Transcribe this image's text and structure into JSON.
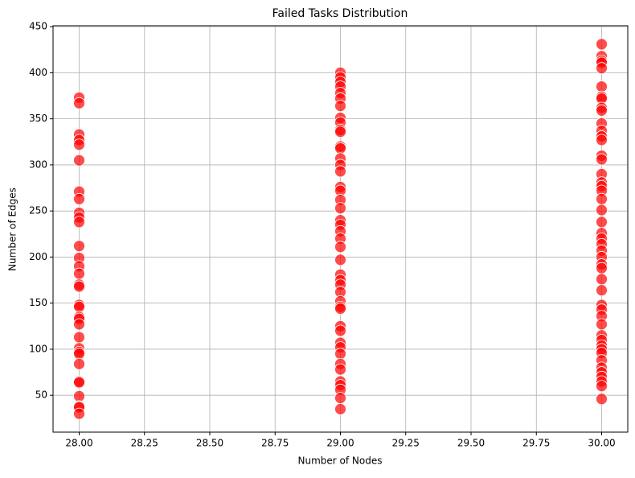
{
  "chart_data": {
    "type": "scatter",
    "title": "Failed Tasks Distribution",
    "x_label": "Number of Nodes",
    "y_label": "Number of Edges",
    "color": "#ff0000",
    "grid": true,
    "xlim": [
      27.9,
      30.1
    ],
    "ylim": [
      10,
      451
    ],
    "xticks": [
      {
        "value": 28,
        "label": "28.00"
      },
      {
        "value": 28.25,
        "label": "28.25"
      },
      {
        "value": 28.5,
        "label": "28.50"
      },
      {
        "value": 28.75,
        "label": "28.75"
      },
      {
        "value": 29,
        "label": "29.00"
      },
      {
        "value": 29.25,
        "label": "29.25"
      },
      {
        "value": 29.5,
        "label": "29.50"
      },
      {
        "value": 29.75,
        "label": "29.75"
      },
      {
        "value": 30,
        "label": "30.00"
      }
    ],
    "yticks": [
      50,
      100,
      150,
      200,
      250,
      300,
      350,
      400,
      450
    ],
    "x": [
      28,
      28,
      28,
      28,
      28,
      28,
      28,
      28,
      28,
      28,
      28,
      28,
      28,
      28,
      28,
      28,
      28,
      28,
      28,
      28,
      28,
      28,
      28,
      28,
      28,
      28,
      28,
      28,
      28,
      28,
      28,
      28,
      28,
      29,
      29,
      29,
      29,
      29,
      29,
      29,
      29,
      29,
      29,
      29,
      29,
      29,
      29,
      29,
      29,
      29,
      29,
      29,
      29,
      29,
      29,
      29,
      29,
      29,
      29,
      29,
      29,
      29,
      29,
      29,
      29,
      29,
      29,
      29,
      29,
      29,
      29,
      29,
      29,
      29,
      29,
      29,
      29,
      29,
      30,
      30,
      30,
      30,
      30,
      30,
      30,
      30,
      30,
      30,
      30,
      30,
      30,
      30,
      30,
      30,
      30,
      30,
      30,
      30,
      30,
      30,
      30,
      30,
      30,
      30,
      30,
      30,
      30,
      30,
      30,
      30,
      30,
      30,
      30,
      30,
      30,
      30,
      30,
      30,
      30,
      30,
      30,
      30,
      30,
      30,
      30,
      30
    ],
    "values": [
      373,
      367,
      333,
      327,
      322,
      305,
      271,
      263,
      248,
      243,
      238,
      212,
      199,
      190,
      182,
      170,
      168,
      148,
      146,
      135,
      133,
      127,
      113,
      101,
      97,
      95,
      84,
      65,
      64,
      49,
      38,
      37,
      30,
      400,
      395,
      390,
      385,
      378,
      372,
      364,
      351,
      346,
      338,
      336,
      320,
      318,
      307,
      300,
      293,
      276,
      272,
      262,
      253,
      240,
      235,
      228,
      220,
      211,
      197,
      181,
      175,
      170,
      162,
      152,
      146,
      144,
      125,
      120,
      107,
      102,
      95,
      84,
      78,
      65,
      61,
      56,
      47,
      35,
      431,
      418,
      413,
      411,
      405,
      385,
      374,
      372,
      362,
      359,
      345,
      337,
      331,
      327,
      310,
      306,
      290,
      281,
      277,
      272,
      263,
      251,
      238,
      226,
      220,
      214,
      207,
      200,
      192,
      188,
      176,
      164,
      148,
      143,
      136,
      127,
      115,
      110,
      104,
      100,
      96,
      88,
      80,
      75,
      70,
      65,
      60,
      46
    ]
  }
}
